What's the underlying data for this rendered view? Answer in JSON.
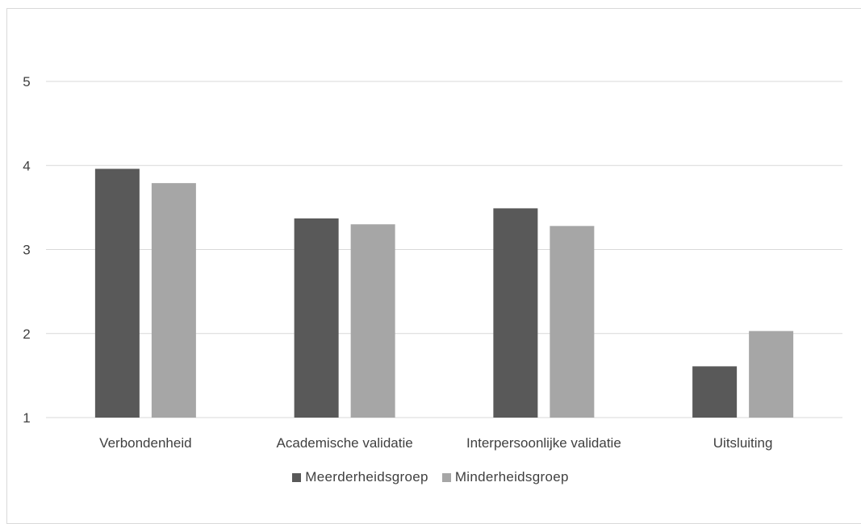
{
  "chart_data": {
    "type": "bar",
    "title": "",
    "xlabel": "",
    "ylabel": "",
    "ylim": [
      1,
      5
    ],
    "yticks": [
      1,
      2,
      3,
      4,
      5
    ],
    "grid": true,
    "legend_position": "bottom",
    "categories": [
      "Verbondenheid",
      "Academische validatie",
      "Interpersoonlijke validatie",
      "Uitsluiting"
    ],
    "series": [
      {
        "name": "Meerderheidsgroep",
        "color": "#595959",
        "values": [
          3.96,
          3.37,
          3.49,
          1.61
        ]
      },
      {
        "name": "Minderheidsgroep",
        "color": "#a6a6a6",
        "values": [
          3.79,
          3.3,
          3.28,
          2.03
        ]
      }
    ]
  }
}
